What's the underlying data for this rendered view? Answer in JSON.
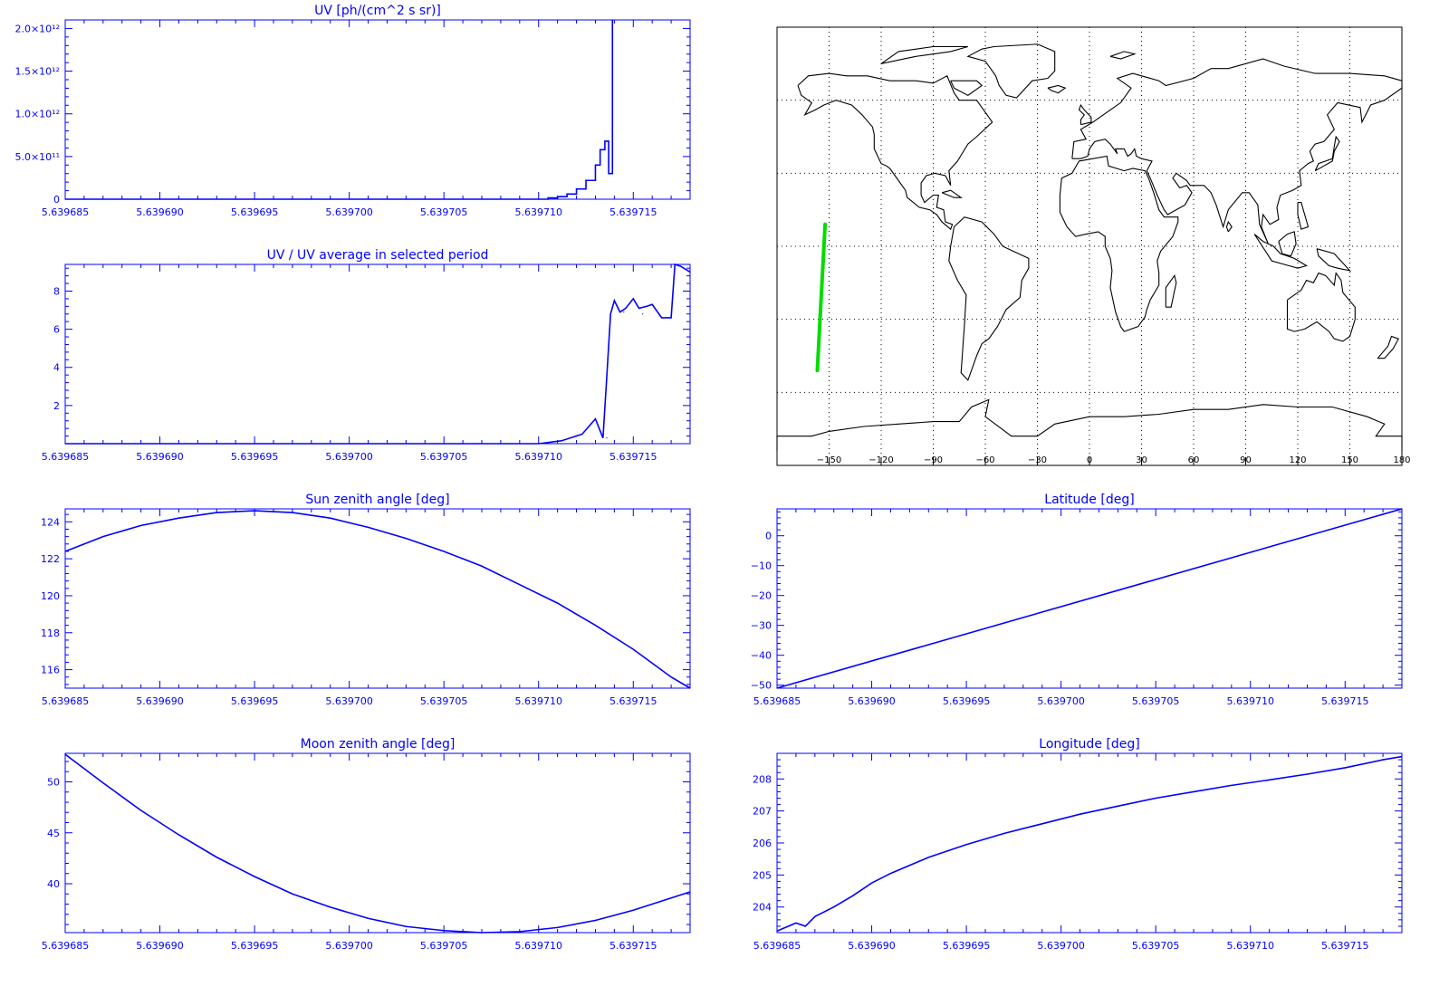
{
  "colors": {
    "axis": "#0000ff",
    "line": "#0000ff",
    "map_coast": "#000000",
    "map_track": "#00dd00",
    "map_grid": "#000000",
    "background": "#ffffff"
  },
  "chart_data": [
    {
      "id": "uv",
      "type": "line",
      "title": "UV [ph/(cm^2 s sr)]",
      "xlim": [
        5.639685,
        5.639718
      ],
      "ylim": [
        0,
        2100000000000.0
      ],
      "x_ticks": [
        5.639685,
        5.63969,
        5.639695,
        5.6397,
        5.639705,
        5.63971,
        5.639715
      ],
      "x_tick_labels": [
        "5.639685",
        "5.639690",
        "5.639695",
        "5.639700",
        "5.639705",
        "5.639710",
        "5.639715"
      ],
      "y_ticks": [
        0,
        500000000000.0,
        1000000000000.0,
        1500000000000.0,
        2000000000000.0
      ],
      "y_tick_labels": [
        "0",
        "5.0×10¹¹",
        "1.0×10¹²",
        "1.5×10¹²",
        "2.0×10¹²"
      ],
      "step": true,
      "x": [
        5.639685,
        5.63971,
        5.6397105,
        5.639711,
        5.6397115,
        5.639712,
        5.6397125,
        5.639713,
        5.63971325,
        5.6397135,
        5.6397137,
        5.6397139
      ],
      "y": [
        0,
        0,
        15000000000.0,
        30000000000.0,
        60000000000.0,
        120000000000.0,
        220000000000.0,
        400000000000.0,
        580000000000.0,
        680000000000.0,
        300000000000.0,
        2100000000000.0
      ]
    },
    {
      "id": "uv-ratio",
      "type": "line",
      "title": "UV / UV average in selected period",
      "xlim": [
        5.639685,
        5.639718
      ],
      "ylim": [
        0,
        9.4
      ],
      "x_ticks": [
        5.639685,
        5.63969,
        5.639695,
        5.6397,
        5.639705,
        5.63971,
        5.639715
      ],
      "x_tick_labels": [
        "5.639685",
        "5.639690",
        "5.639695",
        "5.639700",
        "5.639705",
        "5.639710",
        "5.639715"
      ],
      "y_ticks": [
        2,
        4,
        6,
        8
      ],
      "y_tick_labels": [
        "2",
        "4",
        "6",
        "8"
      ],
      "x": [
        5.639685,
        5.63971,
        5.6397112,
        5.6397123,
        5.639713,
        5.6397136,
        5.639714,
        5.6397145,
        5.639715,
        5.6397155,
        5.639716,
        5.6397165,
        5.639717,
        5.6397175,
        5.639718
      ],
      "y": [
        0,
        0,
        0.15,
        0.5,
        1.3,
        0.3,
        7.5,
        6.9,
        7.6,
        6.8,
        7.3,
        6.6,
        6.6,
        9.4,
        9.0
      ],
      "x_fine": [
        5.639713,
        5.6397132,
        5.6397134,
        5.6397136,
        5.6397138,
        5.639714,
        5.6397143,
        5.6397146,
        5.639715,
        5.6397153,
        5.6397157,
        5.639716,
        5.6397165,
        5.639717,
        5.6397172,
        5.6397175,
        5.639718
      ],
      "y_fine": [
        1.3,
        0.8,
        0.3,
        3.5,
        6.8,
        7.5,
        6.9,
        7.1,
        7.6,
        7.1,
        7.2,
        7.3,
        6.6,
        6.6,
        9.4,
        9.3,
        9.0
      ]
    },
    {
      "id": "sun-zenith",
      "type": "line",
      "title": "Sun zenith angle [deg]",
      "xlim": [
        5.639685,
        5.639718
      ],
      "ylim": [
        115.0,
        124.7
      ],
      "x_ticks": [
        5.639685,
        5.63969,
        5.639695,
        5.6397,
        5.639705,
        5.63971,
        5.639715
      ],
      "x_tick_labels": [
        "5.639685",
        "5.639690",
        "5.639695",
        "5.639700",
        "5.639705",
        "5.639710",
        "5.639715"
      ],
      "y_ticks": [
        116,
        118,
        120,
        122,
        124
      ],
      "y_tick_labels": [
        "116",
        "118",
        "120",
        "122",
        "124"
      ],
      "x": [
        5.639685,
        5.639687,
        5.639689,
        5.639691,
        5.639693,
        5.639695,
        5.639697,
        5.639699,
        5.639701,
        5.639703,
        5.639705,
        5.639707,
        5.639709,
        5.639711,
        5.639713,
        5.639715,
        5.639717,
        5.639718
      ],
      "y": [
        122.4,
        123.2,
        123.8,
        124.2,
        124.5,
        124.6,
        124.5,
        124.2,
        123.7,
        123.1,
        122.4,
        121.6,
        120.6,
        119.6,
        118.4,
        117.1,
        115.6,
        115.0
      ]
    },
    {
      "id": "moon-zenith",
      "type": "line",
      "title": "Moon zenith angle [deg]",
      "xlim": [
        5.639685,
        5.639718
      ],
      "ylim": [
        35.2,
        52.8
      ],
      "x_ticks": [
        5.639685,
        5.63969,
        5.639695,
        5.6397,
        5.639705,
        5.63971,
        5.639715
      ],
      "x_tick_labels": [
        "5.639685",
        "5.639690",
        "5.639695",
        "5.639700",
        "5.639705",
        "5.639710",
        "5.639715"
      ],
      "y_ticks": [
        40,
        45,
        50
      ],
      "y_tick_labels": [
        "40",
        "45",
        "50"
      ],
      "x": [
        5.639685,
        5.639687,
        5.639689,
        5.639691,
        5.639693,
        5.639695,
        5.639697,
        5.639699,
        5.639701,
        5.639703,
        5.639705,
        5.639707,
        5.639709,
        5.639711,
        5.639713,
        5.639715,
        5.639717,
        5.639718
      ],
      "y": [
        52.7,
        49.9,
        47.2,
        44.8,
        42.6,
        40.7,
        39.0,
        37.7,
        36.6,
        35.8,
        35.4,
        35.2,
        35.3,
        35.7,
        36.4,
        37.4,
        38.6,
        39.2
      ]
    },
    {
      "id": "latitude",
      "type": "line",
      "title": "Latitude [deg]",
      "xlim": [
        5.639685,
        5.639718
      ],
      "ylim": [
        -51,
        9
      ],
      "x_ticks": [
        5.639685,
        5.63969,
        5.639695,
        5.6397,
        5.639705,
        5.63971,
        5.639715
      ],
      "x_tick_labels": [
        "5.639685",
        "5.639690",
        "5.639695",
        "5.639700",
        "5.639705",
        "5.639710",
        "5.639715"
      ],
      "y_ticks": [
        -50,
        -40,
        -30,
        -20,
        -10,
        0
      ],
      "y_tick_labels": [
        "−50",
        "−40",
        "−30",
        "−20",
        "−10",
        "0"
      ],
      "x": [
        5.639685,
        5.639718
      ],
      "y": [
        -51,
        9
      ]
    },
    {
      "id": "longitude",
      "type": "line",
      "title": "Longitude [deg]",
      "xlim": [
        5.639685,
        5.639718
      ],
      "ylim": [
        203.2,
        208.8
      ],
      "x_ticks": [
        5.639685,
        5.63969,
        5.639695,
        5.6397,
        5.639705,
        5.63971,
        5.639715
      ],
      "x_tick_labels": [
        "5.639685",
        "5.639690",
        "5.639695",
        "5.639700",
        "5.639705",
        "5.639710",
        "5.639715"
      ],
      "y_ticks": [
        204,
        205,
        206,
        207,
        208
      ],
      "y_tick_labels": [
        "204",
        "205",
        "206",
        "207",
        "208"
      ],
      "x": [
        5.639685,
        5.639686,
        5.6396865,
        5.639687,
        5.639688,
        5.639689,
        5.63969,
        5.639691,
        5.639692,
        5.639693,
        5.639695,
        5.639697,
        5.639699,
        5.639701,
        5.639703,
        5.639705,
        5.639707,
        5.639709,
        5.639711,
        5.639713,
        5.639715,
        5.639717,
        5.639718
      ],
      "y": [
        203.25,
        203.5,
        203.4,
        203.7,
        204.0,
        204.35,
        204.75,
        205.05,
        205.3,
        205.55,
        205.95,
        206.3,
        206.6,
        206.9,
        207.15,
        207.4,
        207.6,
        207.8,
        207.97,
        208.15,
        208.35,
        208.6,
        208.7
      ]
    },
    {
      "id": "ground-track-map",
      "type": "scatter",
      "title": "",
      "xlim": [
        -180,
        180
      ],
      "ylim": [
        -90,
        90
      ],
      "x_ticks": [
        -150,
        -120,
        -90,
        -60,
        -30,
        0,
        30,
        60,
        90,
        120,
        150,
        180
      ],
      "x_tick_labels": [
        "−150",
        "−120",
        "−90",
        "−60",
        "−30",
        "0",
        "30",
        "60",
        "90",
        "120",
        "150",
        "180"
      ],
      "grid": true,
      "track_lon": [
        -156.8,
        -154.5,
        -152.3
      ],
      "track_lat": [
        -51,
        -20,
        9
      ]
    }
  ]
}
